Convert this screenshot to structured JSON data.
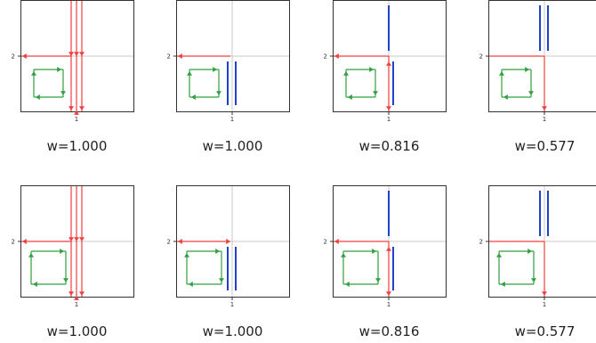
{
  "panels": [
    {
      "caption": "w=1.000",
      "xtick": "1",
      "ytick": "2",
      "box": "small",
      "red": "three-vertical",
      "blue": "none"
    },
    {
      "caption": "w=1.000",
      "xtick": "1",
      "ytick": "2",
      "box": "small",
      "red": "horizontal-arrow",
      "blue": "two-lower"
    },
    {
      "caption": "w=0.816",
      "xtick": "1",
      "ytick": "2",
      "box": "small",
      "red": "corner",
      "blue": "split"
    },
    {
      "caption": "w=0.577",
      "xtick": "1",
      "ytick": "2",
      "box": "small",
      "red": "corner-down",
      "blue": "two-upper"
    },
    {
      "caption": "w=1.000",
      "xtick": "1",
      "ytick": "2",
      "box": "large",
      "red": "three-vertical",
      "blue": "none"
    },
    {
      "caption": "w=1.000",
      "xtick": "1",
      "ytick": "2",
      "box": "large",
      "red": "horizontal-arrow",
      "blue": "two-lower"
    },
    {
      "caption": "w=0.816",
      "xtick": "1",
      "ytick": "2",
      "box": "large",
      "red": "corner",
      "blue": "split"
    },
    {
      "caption": "w=0.577",
      "xtick": "1",
      "ytick": "2",
      "box": "large",
      "red": "corner-down",
      "blue": "two-upper"
    }
  ],
  "colors": {
    "red": "#f04040",
    "blue": "#2040d0",
    "green": "#30a040",
    "axis": "#333333",
    "guide": "#c8c8c8"
  }
}
